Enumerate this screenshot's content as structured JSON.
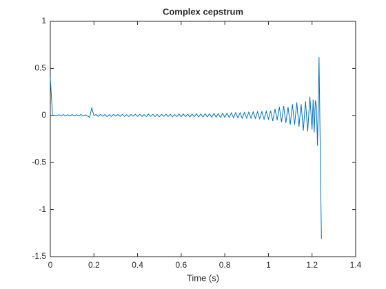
{
  "chart_data": {
    "type": "line",
    "title": "Complex cepstrum",
    "x_label": "Time (s)",
    "x": [
      0,
      0.01,
      0.02,
      0.03,
      0.04,
      0.05,
      0.06,
      0.07,
      0.08,
      0.09,
      0.1,
      0.11,
      0.12,
      0.13,
      0.14,
      0.15,
      0.16,
      0.17,
      0.18,
      0.19,
      0.2,
      0.21,
      0.22,
      0.23,
      0.24,
      0.25,
      0.26,
      0.27,
      0.28,
      0.29,
      0.3,
      0.31,
      0.32,
      0.33,
      0.34,
      0.35,
      0.36,
      0.37,
      0.38,
      0.39,
      0.4,
      0.41,
      0.42,
      0.43,
      0.44,
      0.45,
      0.46,
      0.47,
      0.48,
      0.49,
      0.5,
      0.51,
      0.52,
      0.53,
      0.54,
      0.55,
      0.56,
      0.57,
      0.58,
      0.59,
      0.6,
      0.61,
      0.62,
      0.63,
      0.64,
      0.65,
      0.66,
      0.67,
      0.68,
      0.69,
      0.7,
      0.71,
      0.72,
      0.73,
      0.74,
      0.75,
      0.76,
      0.77,
      0.78,
      0.79,
      0.8,
      0.81,
      0.82,
      0.83,
      0.84,
      0.85,
      0.86,
      0.87,
      0.88,
      0.89,
      0.9,
      0.91,
      0.92,
      0.93,
      0.94,
      0.95,
      0.96,
      0.97,
      0.98,
      0.99,
      1,
      1.01,
      1.02,
      1.03,
      1.04,
      1.05,
      1.06,
      1.07,
      1.08,
      1.09,
      1.1,
      1.11,
      1.12,
      1.13,
      1.14,
      1.15,
      1.16,
      1.17,
      1.18,
      1.19,
      1.2,
      1.205,
      1.21,
      1.215,
      1.22,
      1.225,
      1.232,
      1.243
    ],
    "series": [
      {
        "color": "#0072bd",
        "values": [
          0.4,
          0,
          0.005,
          -0.005,
          0.008,
          -0.006,
          0.01,
          -0.005,
          0.008,
          -0.006,
          0.01,
          -0.005,
          0.008,
          -0.006,
          0.01,
          -0.004,
          0.006,
          -0.005,
          -0.02,
          0.08,
          0,
          0.01,
          -0.01,
          0.012,
          -0.008,
          0.01,
          -0.012,
          0.008,
          -0.01,
          0.012,
          -0.008,
          0.01,
          -0.01,
          0.012,
          -0.01,
          0.008,
          -0.012,
          0.01,
          -0.008,
          0.012,
          -0.01,
          0.012,
          -0.01,
          0.01,
          -0.012,
          0.014,
          -0.01,
          0.012,
          -0.012,
          0.01,
          -0.014,
          0.012,
          -0.01,
          0.014,
          -0.012,
          0.012,
          -0.014,
          0.01,
          -0.012,
          0.014,
          -0.012,
          0.015,
          -0.012,
          0.014,
          -0.016,
          0.016,
          -0.014,
          0.018,
          -0.016,
          0.016,
          -0.018,
          0.02,
          -0.016,
          0.018,
          -0.02,
          0.022,
          -0.018,
          0.02,
          -0.022,
          0.024,
          -0.02,
          0.025,
          -0.022,
          0.028,
          -0.024,
          0.03,
          -0.026,
          0.028,
          -0.03,
          0.032,
          -0.028,
          0.035,
          -0.03,
          0.038,
          -0.032,
          0.04,
          -0.035,
          0.042,
          -0.04,
          0.045,
          -0.04,
          0.05,
          -0.06,
          0.07,
          -0.05,
          0.09,
          -0.07,
          0.1,
          -0.08,
          0.09,
          -0.1,
          0.12,
          -0.1,
          0.14,
          -0.12,
          0.12,
          -0.16,
          0.15,
          -0.17,
          0.2,
          -0.15,
          0.17,
          -0.18,
          0.16,
          0.1,
          -0.32,
          0.62,
          -1.31
        ]
      }
    ],
    "xlim": [
      0,
      1.4
    ],
    "xticks": [
      0,
      0.2,
      0.4,
      0.6,
      0.8,
      1,
      1.2,
      1.4
    ],
    "ylim": [
      -1.5,
      1
    ],
    "yticks": [
      -1.5,
      -1,
      -0.5,
      0,
      0.5,
      1
    ]
  }
}
